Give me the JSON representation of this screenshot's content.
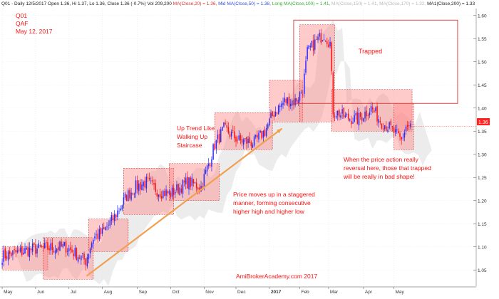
{
  "header": {
    "segments": [
      {
        "text": "Q01 - Daily 12/5/2017 Open 1.36, Hi 1.37, Lo 1.36, Close 1.36 (-0.7%) Vol 209,200",
        "color": "#222222"
      },
      {
        "text": "MA(Close,20) = 1.36,",
        "color": "#e03030"
      },
      {
        "text": "Mid MA(Close,50) = 1.38,",
        "color": "#3050e0"
      },
      {
        "text": "Long MA(Close,100) = 1.41,",
        "color": "#30b030"
      },
      {
        "text": "MA(Close,150) = 1.41, MA(Close,170) = 1.32,",
        "color": "#bbbbbb"
      },
      {
        "text": "MA1(Close,200) = 1.33",
        "color": "#222222"
      }
    ]
  },
  "labels": {
    "ticker": "Q01",
    "name": "QAF",
    "date": "May 12, 2017",
    "trapped": "Trapped",
    "uptrend": [
      "Up Trend Like",
      "Walking Up",
      "Staircase"
    ],
    "staggered": [
      "Price moves up in a staggered",
      "manner, forming consecutive",
      "higher high and higher low"
    ],
    "reversal": [
      "When the price action really",
      "reversal here, those that trapped",
      "will be really in bad shape!"
    ],
    "watermark": "AmiBrokerAcademy.com  2017",
    "last_price": "1.36"
  },
  "colors": {
    "up": "#2a2aff",
    "down": "#ff1010",
    "box_fill": "#ff8080",
    "box_stroke": "#c03030",
    "trend_line": "#f0a050",
    "annotation": "#ff1010",
    "shadow": "#dcdcdc",
    "price_tag": "#ff2020"
  },
  "chart_data": {
    "type": "candlestick",
    "x_ticks": [
      "May",
      "Jun",
      "Jul",
      "Aug",
      "Sep",
      "Oct",
      "Nov",
      "Dec",
      "2017",
      "Feb",
      "Mar",
      "Apr",
      "May"
    ],
    "y_ticks": [
      1.05,
      1.1,
      1.15,
      1.2,
      1.25,
      1.3,
      1.35,
      1.4,
      1.45,
      1.5,
      1.55,
      1.6
    ],
    "ylim": [
      1.015,
      1.615
    ],
    "n_bars": 270,
    "month_start_bars": [
      0,
      22,
      44,
      66,
      89,
      111,
      133,
      154,
      176,
      196,
      215,
      238,
      258
    ],
    "trend_path": [
      [
        0,
        1.08
      ],
      [
        20,
        1.095
      ],
      [
        42,
        1.1
      ],
      [
        55,
        1.07
      ],
      [
        60,
        1.12
      ],
      [
        66,
        1.13
      ],
      [
        74,
        1.165
      ],
      [
        82,
        1.21
      ],
      [
        88,
        1.23
      ],
      [
        95,
        1.24
      ],
      [
        103,
        1.22
      ],
      [
        111,
        1.215
      ],
      [
        122,
        1.24
      ],
      [
        131,
        1.23
      ],
      [
        140,
        1.32
      ],
      [
        146,
        1.355
      ],
      [
        156,
        1.33
      ],
      [
        166,
        1.325
      ],
      [
        173,
        1.35
      ],
      [
        179,
        1.39
      ],
      [
        186,
        1.415
      ],
      [
        193,
        1.415
      ],
      [
        198,
        1.44
      ],
      [
        201,
        1.52
      ],
      [
        207,
        1.545
      ],
      [
        212,
        1.56
      ],
      [
        216,
        1.54
      ],
      [
        218,
        1.395
      ],
      [
        226,
        1.38
      ],
      [
        234,
        1.375
      ],
      [
        243,
        1.4
      ],
      [
        250,
        1.37
      ],
      [
        256,
        1.355
      ],
      [
        263,
        1.33
      ],
      [
        266,
        1.36
      ],
      [
        269,
        1.36
      ]
    ],
    "staircase_boxes": [
      {
        "start": 0,
        "end": 30,
        "low": 1.05,
        "high": 1.1
      },
      {
        "start": 27,
        "end": 60,
        "low": 1.03,
        "high": 1.12
      },
      {
        "start": 57,
        "end": 83,
        "low": 1.09,
        "high": 1.16
      },
      {
        "start": 80,
        "end": 113,
        "low": 1.17,
        "high": 1.27
      },
      {
        "start": 110,
        "end": 143,
        "low": 1.2,
        "high": 1.28
      },
      {
        "start": 140,
        "end": 178,
        "low": 1.31,
        "high": 1.39
      },
      {
        "start": 176,
        "end": 198,
        "low": 1.37,
        "high": 1.46
      },
      {
        "start": 196,
        "end": 219,
        "low": 1.37,
        "high": 1.58
      },
      {
        "start": 217,
        "end": 270,
        "low": 1.35,
        "high": 1.44
      },
      {
        "start": 258,
        "end": 271,
        "low": 1.31,
        "high": 1.41
      }
    ],
    "trapped_zone": {
      "start": 192,
      "end": 300,
      "low": 1.41,
      "high": 1.59
    },
    "trend_arrow": {
      "from": [
        56,
        1.038
      ],
      "to": [
        184,
        1.355
      ]
    },
    "last_price": 1.36
  }
}
